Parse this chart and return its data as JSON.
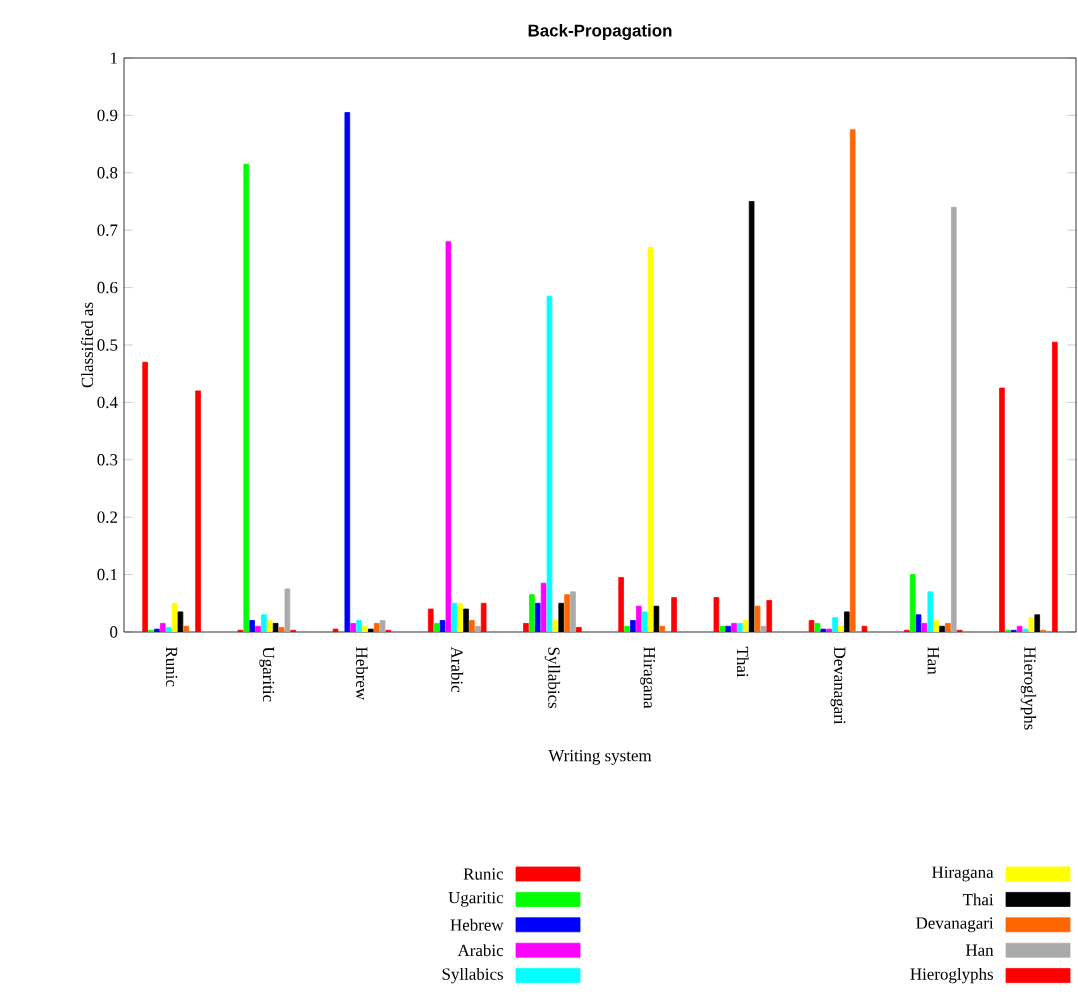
{
  "chart_data": {
    "type": "bar",
    "title": "Back-Propagation",
    "xlabel": "Writing system",
    "ylabel": "Classified as",
    "categories": [
      "Runic",
      "Ugaritic",
      "Hebrew",
      "Arabic",
      "Syllabics",
      "Hiragana",
      "Thai",
      "Devanagari",
      "Han",
      "Hieroglyphs"
    ],
    "series": [
      {
        "name": "Runic",
        "color": "#ff0000",
        "values": [
          0.47,
          0.003,
          0.005,
          0.04,
          0.015,
          0.095,
          0.06,
          0.02,
          0.003,
          0.425
        ]
      },
      {
        "name": "Ugaritic",
        "color": "#00ff00",
        "values": [
          0.003,
          0.815,
          null,
          0.015,
          0.065,
          0.01,
          0.01,
          0.015,
          0.1,
          0.003
        ]
      },
      {
        "name": "Hebrew",
        "color": "#0000ff",
        "values": [
          0.005,
          0.02,
          0.905,
          0.02,
          0.05,
          0.02,
          0.01,
          0.005,
          0.03,
          0.003
        ]
      },
      {
        "name": "Arabic",
        "color": "#ff00ff",
        "values": [
          0.015,
          0.01,
          0.015,
          0.68,
          0.085,
          0.045,
          0.015,
          0.005,
          0.015,
          0.01
        ]
      },
      {
        "name": "Syllabics",
        "color": "#00ffff",
        "values": [
          0.008,
          0.03,
          0.02,
          0.05,
          0.585,
          0.035,
          0.015,
          0.025,
          0.07,
          0.005
        ]
      },
      {
        "name": "Hiragana",
        "color": "#ffff00",
        "values": [
          0.05,
          0.02,
          0.01,
          0.05,
          0.02,
          0.67,
          0.02,
          0.01,
          0.02,
          0.025
        ]
      },
      {
        "name": "Thai",
        "color": "#000000",
        "values": [
          0.035,
          0.015,
          0.005,
          0.04,
          0.05,
          0.045,
          0.75,
          0.035,
          0.01,
          0.03
        ]
      },
      {
        "name": "Devanagari",
        "color": "#ff6600",
        "values": [
          0.01,
          0.008,
          0.015,
          0.02,
          0.065,
          0.01,
          0.045,
          0.875,
          0.015,
          0.003
        ]
      },
      {
        "name": "Han",
        "color": "#aaaaaa",
        "values": [
          null,
          0.075,
          0.02,
          0.01,
          0.07,
          null,
          0.01,
          null,
          0.74,
          null
        ]
      },
      {
        "name": "Hieroglyphs",
        "color": "#ff0000",
        "values": [
          0.42,
          0.003,
          0.003,
          0.05,
          0.008,
          0.06,
          0.055,
          0.01,
          0.003,
          0.505
        ]
      }
    ],
    "ylim": [
      0,
      1
    ],
    "yticks": [
      0,
      0.1,
      0.2,
      0.3,
      0.4,
      0.5,
      0.6,
      0.7,
      0.8,
      0.9,
      1
    ],
    "legend": "bottom"
  }
}
